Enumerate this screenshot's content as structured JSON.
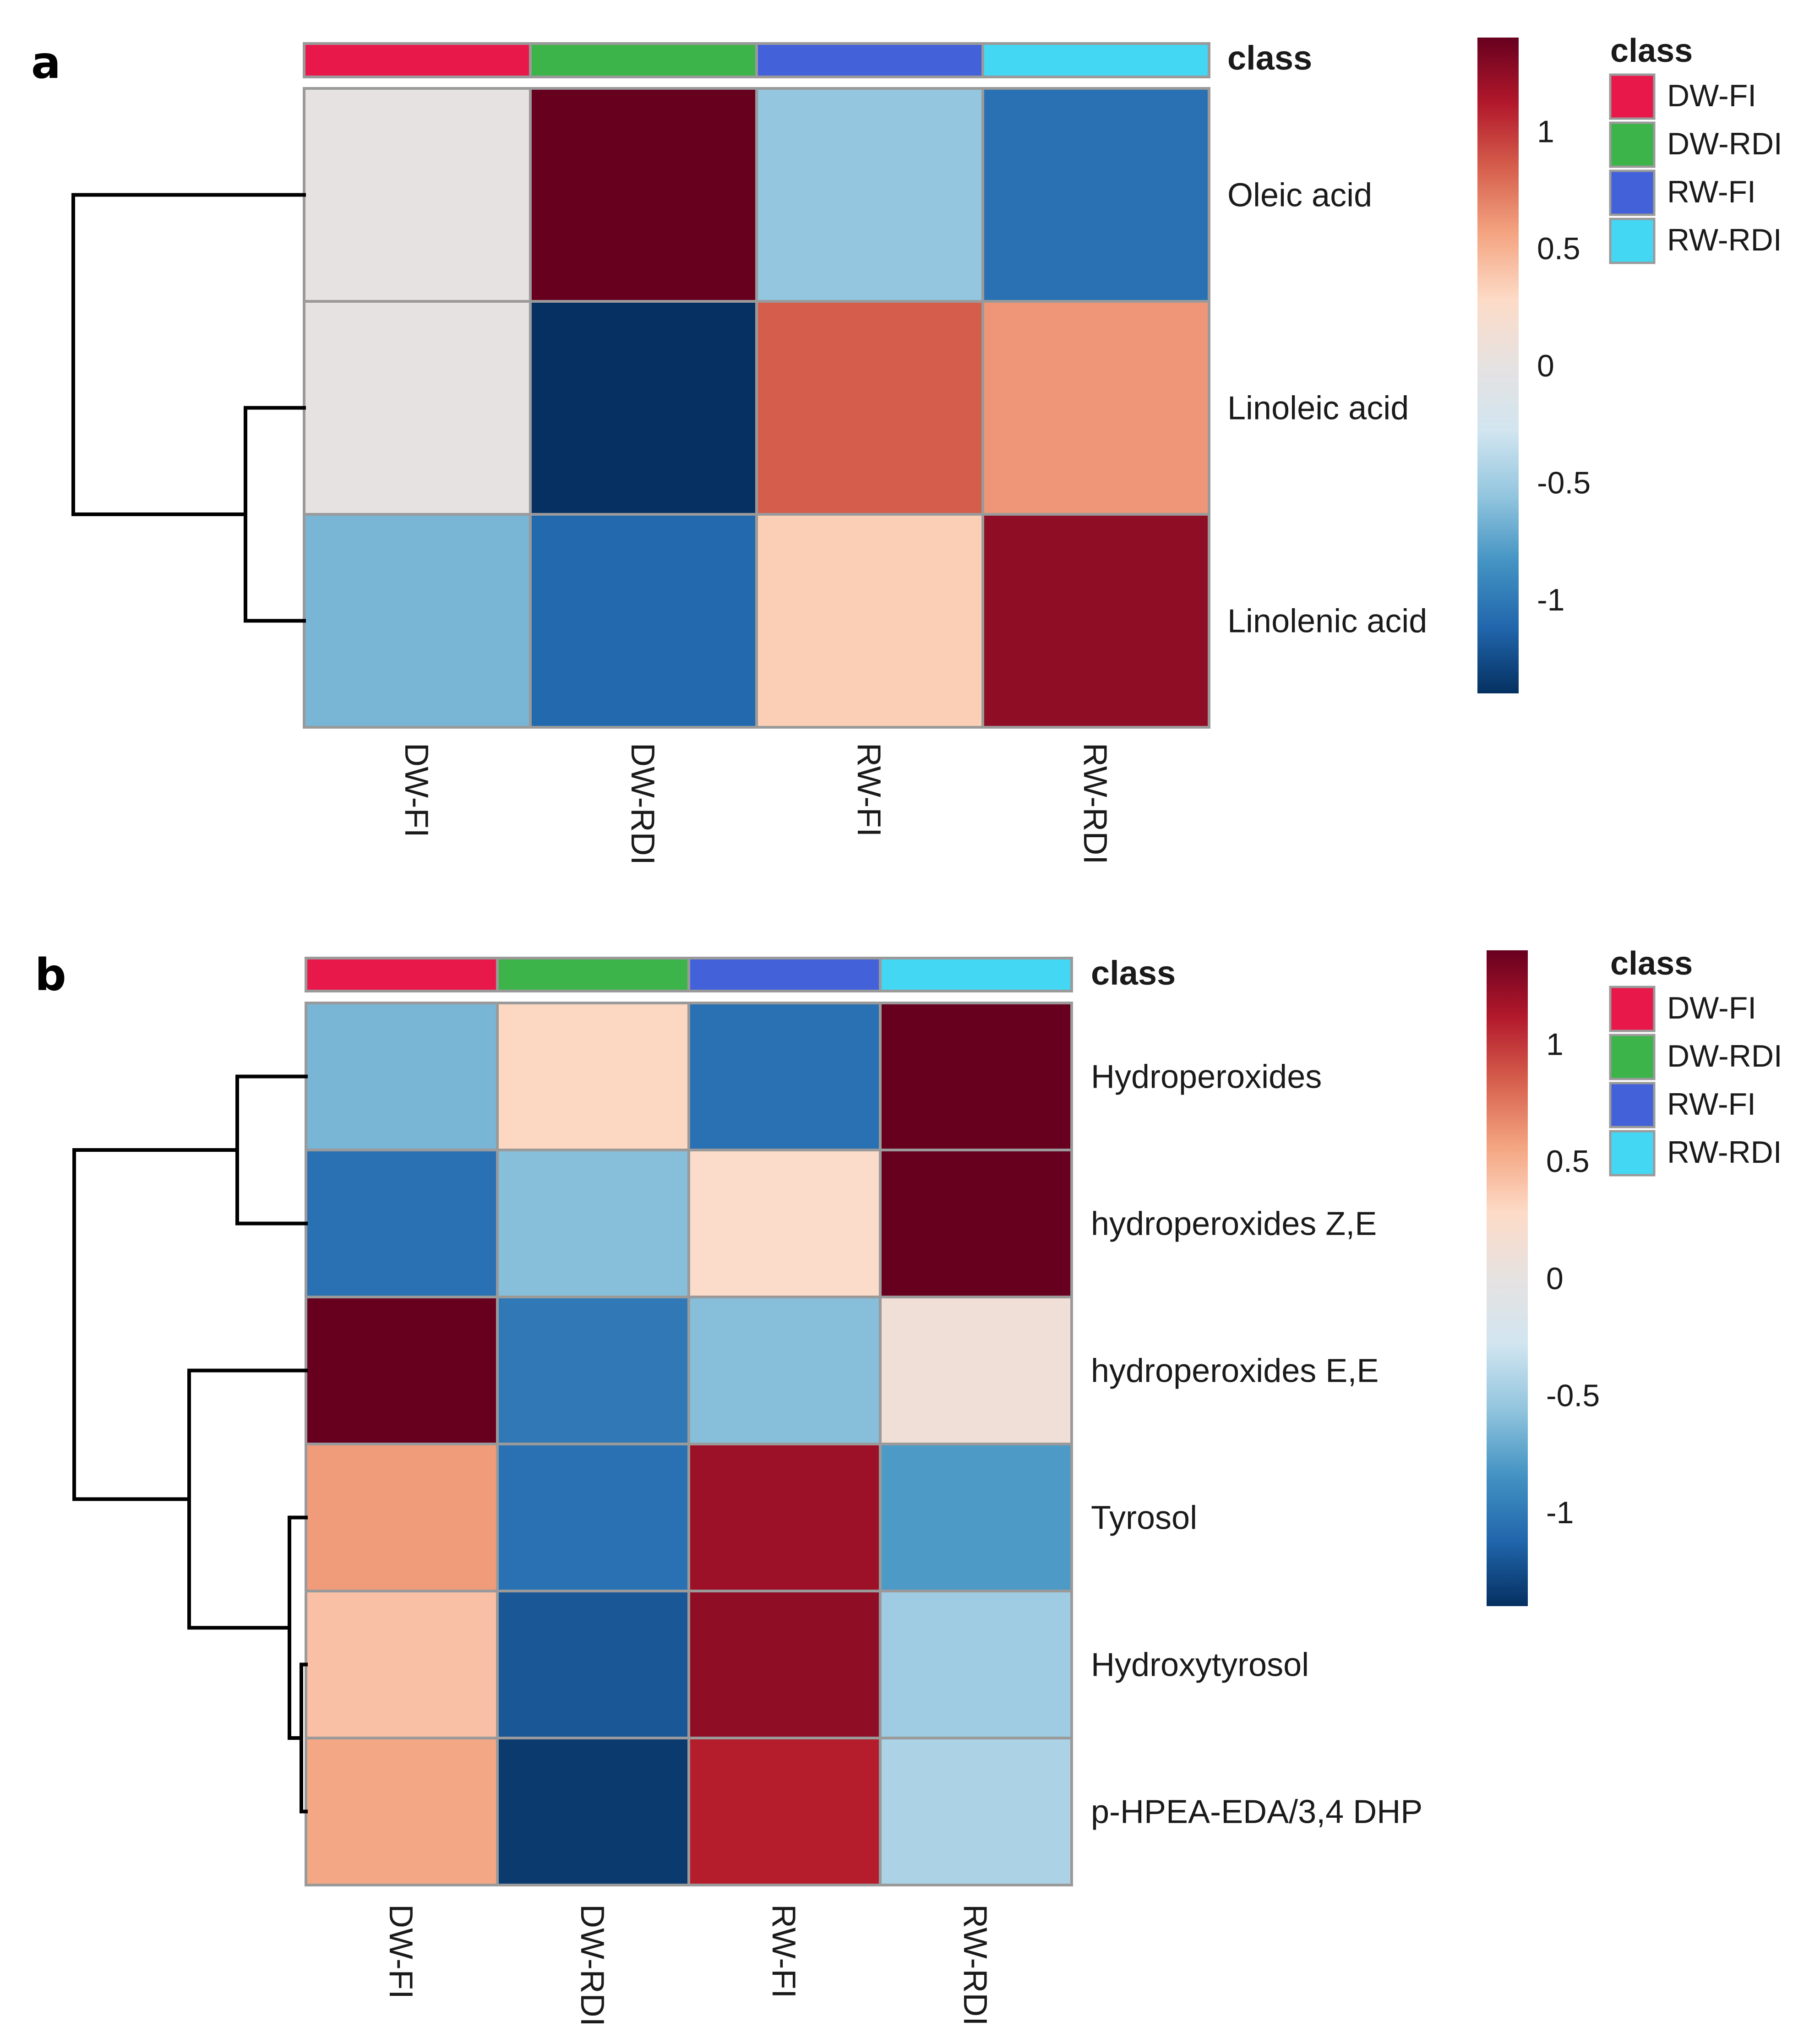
{
  "chart_data": [
    {
      "type": "heatmap",
      "panel": "a",
      "columns": [
        "DW-FI",
        "DW-RDI",
        "RW-FI",
        "RW-RDI"
      ],
      "rows": [
        "Oleic acid",
        "Linoleic acid",
        "Linolenic acid"
      ],
      "values": [
        [
          0.0,
          1.4,
          -0.55,
          -1.05
        ],
        [
          0.0,
          -1.4,
          0.85,
          0.62
        ],
        [
          -0.65,
          -1.1,
          0.35,
          1.25
        ]
      ],
      "class_annotation": {
        "title": "class",
        "values": [
          "DW-FI",
          "DW-RDI",
          "RW-FI",
          "RW-RDI"
        ]
      },
      "colorbar": {
        "ticks": [
          "1",
          "0.5",
          "0",
          "-0.5",
          "-1"
        ],
        "tick_values": [
          1,
          0.5,
          0,
          -0.5,
          -1
        ],
        "range": [
          -1.4,
          1.4
        ]
      },
      "legend": {
        "title": "class",
        "entries": [
          "DW-FI",
          "DW-RDI",
          "RW-FI",
          "RW-RDI"
        ]
      },
      "dendrogram": "rows: Oleic acid | (Linoleic acid, Linolenic acid)"
    },
    {
      "type": "heatmap",
      "panel": "b",
      "columns": [
        "DW-FI",
        "DW-RDI",
        "RW-FI",
        "RW-RDI"
      ],
      "rows": [
        "Hydroperoxides",
        "hydroperoxides Z,E",
        "hydroperoxides E,E",
        "Tyrosol",
        "Hydroxytyrosol",
        "p-HPEA-EDA/3,4 DHP"
      ],
      "values": [
        [
          -0.65,
          0.3,
          -1.05,
          1.4
        ],
        [
          -1.05,
          -0.6,
          0.25,
          1.4
        ],
        [
          1.45,
          -1.0,
          -0.6,
          0.12
        ],
        [
          0.6,
          -1.05,
          1.2,
          -0.8
        ],
        [
          0.42,
          -1.2,
          1.25,
          -0.5
        ],
        [
          0.55,
          -1.35,
          1.1,
          -0.45
        ]
      ],
      "class_annotation": {
        "title": "class",
        "values": [
          "DW-FI",
          "DW-RDI",
          "RW-FI",
          "RW-RDI"
        ]
      },
      "colorbar": {
        "ticks": [
          "1",
          "0.5",
          "0",
          "-0.5",
          "-1"
        ],
        "tick_values": [
          1,
          0.5,
          0,
          -0.5,
          -1
        ],
        "range": [
          -1.4,
          1.4
        ]
      },
      "legend": {
        "title": "class",
        "entries": [
          "DW-FI",
          "DW-RDI",
          "RW-FI",
          "RW-RDI"
        ]
      },
      "dendrogram": "rows: (Hydroperoxides, hydroperoxides Z,E) | (hydroperoxides E,E, (Tyrosol, (Hydroxytyrosol, p-HPEA-EDA/3,4 DHP)))"
    }
  ],
  "class_colors": {
    "DW-FI": "#e8194a",
    "DW-RDI": "#3cb449",
    "RW-FI": "#4361d8",
    "RW-RDI": "#43d7f4"
  },
  "color_scale": [
    "#053061",
    "#2166ac",
    "#4393c3",
    "#92c5de",
    "#d1e5f0",
    "#e6e2e1",
    "#fddbc7",
    "#f4a582",
    "#d6604d",
    "#b2182b",
    "#67001f"
  ]
}
